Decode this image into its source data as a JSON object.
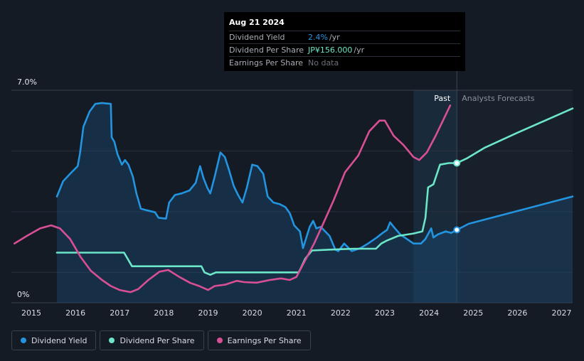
{
  "tooltip": {
    "date": "Aug 21 2024",
    "rows": [
      {
        "label": "Dividend Yield",
        "value": "2.4%",
        "unit": "/yr",
        "color": "#2394df"
      },
      {
        "label": "Dividend Per Share",
        "value": "JP¥156.000",
        "unit": "/yr",
        "color": "#6ce6c8"
      },
      {
        "label": "Earnings Per Share",
        "value": "No data",
        "unit": ""
      }
    ]
  },
  "legend": [
    {
      "label": "Dividend Yield",
      "color": "#2394df"
    },
    {
      "label": "Dividend Per Share",
      "color": "#6ce6c8"
    },
    {
      "label": "Earnings Per Share",
      "color": "#d94f95"
    }
  ],
  "chart_data": {
    "type": "line",
    "y_axis_labels": [
      "7.0%",
      "0%"
    ],
    "ylim": [
      0,
      7.0
    ],
    "xlim": [
      2014.55,
      2027.25
    ],
    "x_ticks": [
      2015,
      2016,
      2017,
      2018,
      2019,
      2020,
      2021,
      2022,
      2023,
      2024,
      2025,
      2026,
      2027
    ],
    "regions": {
      "past_label": "Past",
      "forecast_label": "Analysts Forecasts",
      "forecast_start": 2024.63,
      "past_highlight_start": 2023.65
    },
    "grid": true,
    "series": [
      {
        "name": "Dividend Yield",
        "color": "#2394df",
        "fill": true,
        "points": [
          [
            2015.58,
            3.5
          ],
          [
            2015.72,
            4.0
          ],
          [
            2015.88,
            4.25
          ],
          [
            2016.05,
            4.5
          ],
          [
            2016.1,
            4.9
          ],
          [
            2016.18,
            5.8
          ],
          [
            2016.32,
            6.3
          ],
          [
            2016.45,
            6.55
          ],
          [
            2016.6,
            6.58
          ],
          [
            2016.8,
            6.55
          ],
          [
            2016.82,
            5.45
          ],
          [
            2016.88,
            5.3
          ],
          [
            2016.95,
            4.9
          ],
          [
            2017.05,
            4.55
          ],
          [
            2017.12,
            4.7
          ],
          [
            2017.2,
            4.55
          ],
          [
            2017.3,
            4.15
          ],
          [
            2017.38,
            3.6
          ],
          [
            2017.48,
            3.1
          ],
          [
            2017.6,
            3.05
          ],
          [
            2017.8,
            2.98
          ],
          [
            2017.88,
            2.8
          ],
          [
            2018.05,
            2.77
          ],
          [
            2018.12,
            3.3
          ],
          [
            2018.25,
            3.55
          ],
          [
            2018.4,
            3.6
          ],
          [
            2018.58,
            3.7
          ],
          [
            2018.72,
            3.95
          ],
          [
            2018.82,
            4.5
          ],
          [
            2018.9,
            4.1
          ],
          [
            2018.98,
            3.8
          ],
          [
            2019.05,
            3.6
          ],
          [
            2019.15,
            4.15
          ],
          [
            2019.28,
            4.95
          ],
          [
            2019.38,
            4.8
          ],
          [
            2019.48,
            4.35
          ],
          [
            2019.58,
            3.85
          ],
          [
            2019.68,
            3.55
          ],
          [
            2019.78,
            3.3
          ],
          [
            2019.88,
            3.8
          ],
          [
            2020.0,
            4.55
          ],
          [
            2020.12,
            4.5
          ],
          [
            2020.25,
            4.25
          ],
          [
            2020.35,
            3.5
          ],
          [
            2020.48,
            3.3
          ],
          [
            2020.62,
            3.25
          ],
          [
            2020.75,
            3.15
          ],
          [
            2020.85,
            2.95
          ],
          [
            2020.95,
            2.55
          ],
          [
            2021.08,
            2.35
          ],
          [
            2021.15,
            1.8
          ],
          [
            2021.3,
            2.5
          ],
          [
            2021.38,
            2.7
          ],
          [
            2021.45,
            2.45
          ],
          [
            2021.55,
            2.5
          ],
          [
            2021.75,
            2.2
          ],
          [
            2021.88,
            1.75
          ],
          [
            2021.95,
            1.7
          ],
          [
            2022.08,
            1.95
          ],
          [
            2022.15,
            1.85
          ],
          [
            2022.25,
            1.7
          ],
          [
            2022.45,
            1.8
          ],
          [
            2022.62,
            1.95
          ],
          [
            2022.82,
            2.15
          ],
          [
            2022.95,
            2.3
          ],
          [
            2023.05,
            2.4
          ],
          [
            2023.12,
            2.65
          ],
          [
            2023.2,
            2.5
          ],
          [
            2023.35,
            2.25
          ],
          [
            2023.5,
            2.1
          ],
          [
            2023.65,
            1.95
          ],
          [
            2023.82,
            1.95
          ],
          [
            2023.92,
            2.1
          ],
          [
            2024.05,
            2.45
          ],
          [
            2024.1,
            2.15
          ],
          [
            2024.2,
            2.25
          ],
          [
            2024.38,
            2.35
          ],
          [
            2024.5,
            2.3
          ],
          [
            2024.63,
            2.4
          ],
          [
            2024.9,
            2.6
          ],
          [
            2027.25,
            3.5
          ]
        ]
      },
      {
        "name": "Dividend Per Share",
        "color": "#6ce6c8",
        "fill": false,
        "points": [
          [
            2015.58,
            1.65
          ],
          [
            2016.0,
            1.65
          ],
          [
            2017.1,
            1.65
          ],
          [
            2017.28,
            1.2
          ],
          [
            2018.85,
            1.2
          ],
          [
            2018.92,
            1.0
          ],
          [
            2019.05,
            0.92
          ],
          [
            2019.18,
            1.0
          ],
          [
            2021.05,
            1.0
          ],
          [
            2021.12,
            1.2
          ],
          [
            2021.2,
            1.45
          ],
          [
            2021.35,
            1.72
          ],
          [
            2021.75,
            1.75
          ],
          [
            2022.3,
            1.78
          ],
          [
            2022.35,
            1.78
          ],
          [
            2022.8,
            1.78
          ],
          [
            2022.92,
            1.95
          ],
          [
            2023.05,
            2.05
          ],
          [
            2023.3,
            2.2
          ],
          [
            2023.65,
            2.28
          ],
          [
            2023.85,
            2.35
          ],
          [
            2023.92,
            2.8
          ],
          [
            2023.98,
            3.8
          ],
          [
            2024.1,
            3.9
          ],
          [
            2024.25,
            4.55
          ],
          [
            2024.45,
            4.6
          ],
          [
            2024.63,
            4.6
          ],
          [
            2024.85,
            4.75
          ],
          [
            2025.25,
            5.1
          ],
          [
            2026.0,
            5.6
          ],
          [
            2027.25,
            6.4
          ]
        ]
      },
      {
        "name": "Earnings Per Share",
        "color": "#d94f95",
        "fill": false,
        "points": [
          [
            2014.62,
            1.95
          ],
          [
            2014.9,
            2.2
          ],
          [
            2015.2,
            2.45
          ],
          [
            2015.45,
            2.55
          ],
          [
            2015.65,
            2.45
          ],
          [
            2015.88,
            2.1
          ],
          [
            2016.12,
            1.5
          ],
          [
            2016.35,
            1.05
          ],
          [
            2016.6,
            0.75
          ],
          [
            2016.8,
            0.55
          ],
          [
            2017.0,
            0.42
          ],
          [
            2017.25,
            0.35
          ],
          [
            2017.42,
            0.45
          ],
          [
            2017.65,
            0.75
          ],
          [
            2017.9,
            1.02
          ],
          [
            2018.1,
            1.08
          ],
          [
            2018.35,
            0.85
          ],
          [
            2018.6,
            0.65
          ],
          [
            2018.8,
            0.55
          ],
          [
            2019.0,
            0.42
          ],
          [
            2019.15,
            0.55
          ],
          [
            2019.4,
            0.6
          ],
          [
            2019.65,
            0.72
          ],
          [
            2019.82,
            0.68
          ],
          [
            2020.1,
            0.66
          ],
          [
            2020.4,
            0.75
          ],
          [
            2020.65,
            0.8
          ],
          [
            2020.85,
            0.75
          ],
          [
            2021.0,
            0.85
          ],
          [
            2021.2,
            1.4
          ],
          [
            2021.4,
            1.95
          ],
          [
            2021.62,
            2.65
          ],
          [
            2021.85,
            3.4
          ],
          [
            2022.1,
            4.3
          ],
          [
            2022.4,
            4.85
          ],
          [
            2022.65,
            5.65
          ],
          [
            2022.88,
            6.0
          ],
          [
            2023.0,
            6.0
          ],
          [
            2023.2,
            5.5
          ],
          [
            2023.42,
            5.2
          ],
          [
            2023.65,
            4.8
          ],
          [
            2023.78,
            4.7
          ],
          [
            2023.95,
            4.95
          ],
          [
            2024.15,
            5.5
          ],
          [
            2024.3,
            5.95
          ],
          [
            2024.48,
            6.5
          ]
        ]
      }
    ],
    "markers": [
      {
        "series": "Dividend Yield",
        "x": 2024.63,
        "y": 2.4
      },
      {
        "series": "Dividend Per Share",
        "x": 2024.63,
        "y": 4.6
      }
    ]
  }
}
